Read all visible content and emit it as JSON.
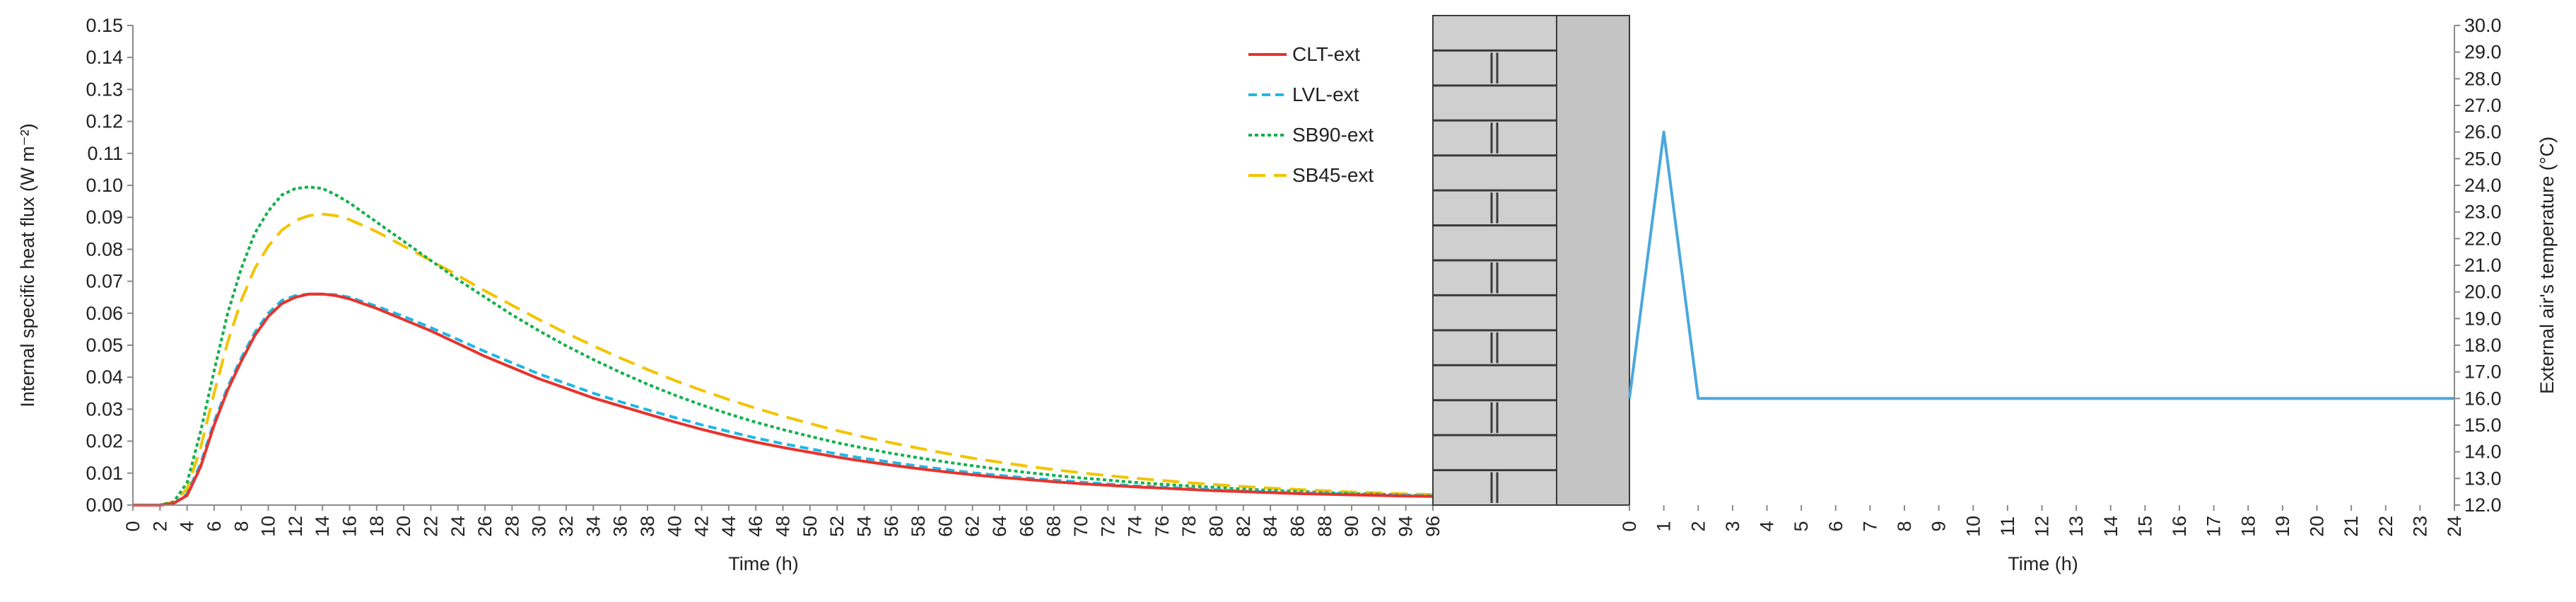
{
  "chart_data": [
    {
      "type": "line",
      "xlabel": "Time (h)",
      "ylabel": "Internal specific heat flux (W m⁻²)",
      "xlim": [
        0,
        96
      ],
      "ylim": [
        0,
        0.15
      ],
      "x_ticks": [
        "0",
        "2",
        "4",
        "6",
        "8",
        "10",
        "12",
        "14",
        "16",
        "18",
        "20",
        "22",
        "24",
        "26",
        "28",
        "30",
        "32",
        "34",
        "36",
        "38",
        "40",
        "42",
        "44",
        "46",
        "48",
        "50",
        "52",
        "54",
        "56",
        "58",
        "60",
        "62",
        "64",
        "66",
        "68",
        "70",
        "72",
        "74",
        "76",
        "78",
        "80",
        "82",
        "84",
        "86",
        "88",
        "90",
        "92",
        "94",
        "96"
      ],
      "y_ticks": [
        "0.00",
        "0.01",
        "0.02",
        "0.03",
        "0.04",
        "0.05",
        "0.06",
        "0.07",
        "0.08",
        "0.09",
        "0.10",
        "0.11",
        "0.12",
        "0.13",
        "0.14",
        "0.15"
      ],
      "grid": false,
      "legend_position": "top-right",
      "series": [
        {
          "name": "CLT-ext",
          "color": "#e8332c",
          "dash": "solid",
          "points": [
            [
              0,
              0
            ],
            [
              2,
              0
            ],
            [
              3,
              0.0005
            ],
            [
              4,
              0.003
            ],
            [
              5,
              0.012
            ],
            [
              6,
              0.025
            ],
            [
              7,
              0.036
            ],
            [
              8,
              0.045
            ],
            [
              9,
              0.053
            ],
            [
              10,
              0.059
            ],
            [
              11,
              0.063
            ],
            [
              12,
              0.065
            ],
            [
              13,
              0.066
            ],
            [
              14,
              0.066
            ],
            [
              15,
              0.0655
            ],
            [
              16,
              0.0645
            ],
            [
              18,
              0.0615
            ],
            [
              20,
              0.058
            ],
            [
              22,
              0.0545
            ],
            [
              24,
              0.0505
            ],
            [
              26,
              0.0465
            ],
            [
              28,
              0.043
            ],
            [
              30,
              0.0395
            ],
            [
              32,
              0.0365
            ],
            [
              34,
              0.0335
            ],
            [
              36,
              0.031
            ],
            [
              38,
              0.0285
            ],
            [
              40,
              0.026
            ],
            [
              42,
              0.0237
            ],
            [
              44,
              0.0216
            ],
            [
              46,
              0.0197
            ],
            [
              48,
              0.018
            ],
            [
              50,
              0.0165
            ],
            [
              52,
              0.015
            ],
            [
              54,
              0.0137
            ],
            [
              56,
              0.0125
            ],
            [
              58,
              0.0114
            ],
            [
              60,
              0.0104
            ],
            [
              62,
              0.0095
            ],
            [
              64,
              0.0087
            ],
            [
              66,
              0.008
            ],
            [
              68,
              0.0073
            ],
            [
              70,
              0.0067
            ],
            [
              72,
              0.0062
            ],
            [
              74,
              0.0057
            ],
            [
              76,
              0.0053
            ],
            [
              78,
              0.0049
            ],
            [
              80,
              0.0045
            ],
            [
              82,
              0.0042
            ],
            [
              84,
              0.0039
            ],
            [
              86,
              0.0036
            ],
            [
              88,
              0.0034
            ],
            [
              90,
              0.0032
            ],
            [
              92,
              0.003
            ],
            [
              94,
              0.0028
            ],
            [
              96,
              0.0027
            ]
          ]
        },
        {
          "name": "LVL-ext",
          "color": "#1fb8e6",
          "dash": "short-dash",
          "points": [
            [
              0,
              0
            ],
            [
              2,
              0
            ],
            [
              3,
              0.0005
            ],
            [
              4,
              0.0035
            ],
            [
              5,
              0.013
            ],
            [
              6,
              0.026
            ],
            [
              7,
              0.037
            ],
            [
              8,
              0.046
            ],
            [
              9,
              0.054
            ],
            [
              10,
              0.06
            ],
            [
              11,
              0.064
            ],
            [
              12,
              0.0655
            ],
            [
              13,
              0.066
            ],
            [
              14,
              0.066
            ],
            [
              15,
              0.0658
            ],
            [
              16,
              0.065
            ],
            [
              18,
              0.0622
            ],
            [
              20,
              0.059
            ],
            [
              22,
              0.0555
            ],
            [
              24,
              0.0518
            ],
            [
              26,
              0.048
            ],
            [
              28,
              0.0445
            ],
            [
              30,
              0.041
            ],
            [
              32,
              0.038
            ],
            [
              34,
              0.035
            ],
            [
              36,
              0.0323
            ],
            [
              38,
              0.0298
            ],
            [
              40,
              0.0274
            ],
            [
              42,
              0.0251
            ],
            [
              44,
              0.023
            ],
            [
              46,
              0.021
            ],
            [
              48,
              0.0192
            ],
            [
              50,
              0.0176
            ],
            [
              52,
              0.016
            ],
            [
              54,
              0.0146
            ],
            [
              56,
              0.0134
            ],
            [
              58,
              0.0122
            ],
            [
              60,
              0.0111
            ],
            [
              62,
              0.0101
            ],
            [
              64,
              0.0093
            ],
            [
              66,
              0.0085
            ],
            [
              68,
              0.0078
            ],
            [
              70,
              0.0072
            ],
            [
              72,
              0.0066
            ],
            [
              74,
              0.006
            ],
            [
              76,
              0.0056
            ],
            [
              78,
              0.0052
            ],
            [
              80,
              0.0048
            ],
            [
              82,
              0.0044
            ],
            [
              84,
              0.0041
            ],
            [
              86,
              0.0038
            ],
            [
              88,
              0.0036
            ],
            [
              90,
              0.0034
            ],
            [
              92,
              0.0032
            ],
            [
              94,
              0.003
            ],
            [
              96,
              0.0028
            ]
          ]
        },
        {
          "name": "SB90-ext",
          "color": "#14b04c",
          "dash": "dotted",
          "points": [
            [
              0,
              0
            ],
            [
              2,
              0
            ],
            [
              3,
              0.001
            ],
            [
              4,
              0.007
            ],
            [
              5,
              0.023
            ],
            [
              6,
              0.042
            ],
            [
              7,
              0.06
            ],
            [
              8,
              0.074
            ],
            [
              9,
              0.085
            ],
            [
              10,
              0.092
            ],
            [
              11,
              0.097
            ],
            [
              12,
              0.099
            ],
            [
              13,
              0.0995
            ],
            [
              14,
              0.099
            ],
            [
              15,
              0.097
            ],
            [
              16,
              0.0945
            ],
            [
              18,
              0.0885
            ],
            [
              20,
              0.0825
            ],
            [
              22,
              0.0765
            ],
            [
              24,
              0.0705
            ],
            [
              26,
              0.065
            ],
            [
              28,
              0.0595
            ],
            [
              30,
              0.0545
            ],
            [
              32,
              0.0498
            ],
            [
              34,
              0.0455
            ],
            [
              36,
              0.0415
            ],
            [
              38,
              0.0378
            ],
            [
              40,
              0.0344
            ],
            [
              42,
              0.0313
            ],
            [
              44,
              0.0285
            ],
            [
              46,
              0.0259
            ],
            [
              48,
              0.0236
            ],
            [
              50,
              0.0215
            ],
            [
              52,
              0.0195
            ],
            [
              54,
              0.0178
            ],
            [
              56,
              0.0162
            ],
            [
              58,
              0.0148
            ],
            [
              60,
              0.0135
            ],
            [
              62,
              0.0123
            ],
            [
              64,
              0.0112
            ],
            [
              66,
              0.0102
            ],
            [
              68,
              0.0093
            ],
            [
              70,
              0.0085
            ],
            [
              72,
              0.0078
            ],
            [
              74,
              0.0071
            ],
            [
              76,
              0.0065
            ],
            [
              78,
              0.006
            ],
            [
              80,
              0.0055
            ],
            [
              82,
              0.005
            ],
            [
              84,
              0.0046
            ],
            [
              86,
              0.0043
            ],
            [
              88,
              0.0039
            ],
            [
              90,
              0.0036
            ],
            [
              92,
              0.0034
            ],
            [
              94,
              0.0031
            ],
            [
              96,
              0.0029
            ]
          ]
        },
        {
          "name": "SB45-ext",
          "color": "#f2c400",
          "dash": "long-dash",
          "points": [
            [
              0,
              0
            ],
            [
              2,
              0
            ],
            [
              3,
              0.001
            ],
            [
              4,
              0.005
            ],
            [
              5,
              0.018
            ],
            [
              6,
              0.035
            ],
            [
              7,
              0.051
            ],
            [
              8,
              0.064
            ],
            [
              9,
              0.074
            ],
            [
              10,
              0.081
            ],
            [
              11,
              0.086
            ],
            [
              12,
              0.089
            ],
            [
              13,
              0.0905
            ],
            [
              14,
              0.091
            ],
            [
              15,
              0.0905
            ],
            [
              16,
              0.0893
            ],
            [
              18,
              0.0855
            ],
            [
              20,
              0.081
            ],
            [
              22,
              0.0765
            ],
            [
              24,
              0.0718
            ],
            [
              26,
              0.067
            ],
            [
              28,
              0.0625
            ],
            [
              30,
              0.058
            ],
            [
              32,
              0.0538
            ],
            [
              34,
              0.0498
            ],
            [
              36,
              0.046
            ],
            [
              38,
              0.0424
            ],
            [
              40,
              0.039
            ],
            [
              42,
              0.0359
            ],
            [
              44,
              0.033
            ],
            [
              46,
              0.0303
            ],
            [
              48,
              0.0278
            ],
            [
              50,
              0.0255
            ],
            [
              52,
              0.0233
            ],
            [
              54,
              0.0213
            ],
            [
              56,
              0.0195
            ],
            [
              58,
              0.0178
            ],
            [
              60,
              0.0162
            ],
            [
              62,
              0.0147
            ],
            [
              64,
              0.0134
            ],
            [
              66,
              0.0122
            ],
            [
              68,
              0.0111
            ],
            [
              70,
              0.0101
            ],
            [
              72,
              0.0092
            ],
            [
              74,
              0.0084
            ],
            [
              76,
              0.0077
            ],
            [
              78,
              0.007
            ],
            [
              80,
              0.0064
            ],
            [
              82,
              0.0058
            ],
            [
              84,
              0.0053
            ],
            [
              86,
              0.0049
            ],
            [
              88,
              0.0045
            ],
            [
              90,
              0.0041
            ],
            [
              92,
              0.0038
            ],
            [
              94,
              0.0035
            ],
            [
              96,
              0.0033
            ]
          ]
        }
      ]
    },
    {
      "type": "line",
      "xlabel": "Time (h)",
      "ylabel": "External air's temperature (°C)",
      "xlim": [
        0,
        24
      ],
      "ylim": [
        12,
        30
      ],
      "x_ticks": [
        "0",
        "1",
        "2",
        "3",
        "4",
        "5",
        "6",
        "7",
        "8",
        "9",
        "10",
        "11",
        "12",
        "13",
        "14",
        "15",
        "16",
        "17",
        "18",
        "19",
        "20",
        "21",
        "22",
        "23",
        "24"
      ],
      "y_ticks": [
        "12.0",
        "13.0",
        "14.0",
        "15.0",
        "16.0",
        "17.0",
        "18.0",
        "19.0",
        "20.0",
        "21.0",
        "22.0",
        "23.0",
        "24.0",
        "25.0",
        "26.0",
        "27.0",
        "28.0",
        "29.0",
        "30.0"
      ],
      "y_axis_side": "right",
      "grid": false,
      "series": [
        {
          "color": "#4aa8dc",
          "points": [
            [
              0,
              16
            ],
            [
              1,
              26
            ],
            [
              2,
              16
            ],
            [
              24,
              16
            ]
          ]
        }
      ]
    }
  ],
  "wall_diagram": {
    "brick_color": "#cfcfcf",
    "mortar_color": "#3a3a3a",
    "panel_color": "#c4c4c4"
  }
}
